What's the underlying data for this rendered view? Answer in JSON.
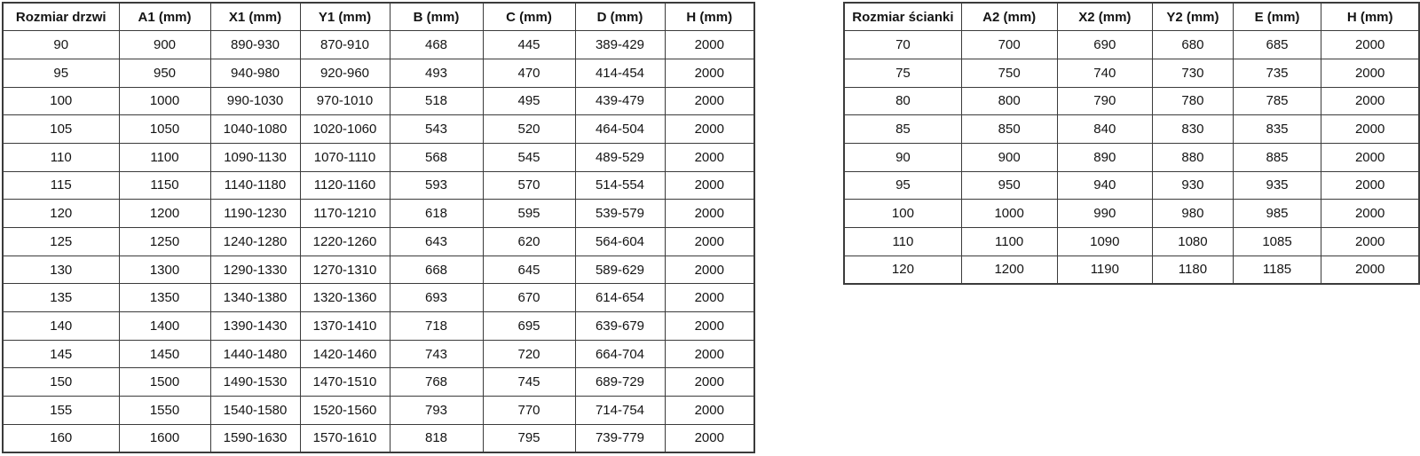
{
  "colors": {
    "border": "#3b3b3b",
    "text": "#141414",
    "background": "#ffffff"
  },
  "tables": [
    {
      "name": "door-size-table",
      "columns": [
        "Rozmiar drzwi",
        "A1 (mm)",
        "X1 (mm)",
        "Y1 (mm)",
        "B (mm)",
        "C (mm)",
        "D (mm)",
        "H (mm)"
      ],
      "rows": [
        [
          "90",
          "900",
          "890-930",
          "870-910",
          "468",
          "445",
          "389-429",
          "2000"
        ],
        [
          "95",
          "950",
          "940-980",
          "920-960",
          "493",
          "470",
          "414-454",
          "2000"
        ],
        [
          "100",
          "1000",
          "990-1030",
          "970-1010",
          "518",
          "495",
          "439-479",
          "2000"
        ],
        [
          "105",
          "1050",
          "1040-1080",
          "1020-1060",
          "543",
          "520",
          "464-504",
          "2000"
        ],
        [
          "110",
          "1100",
          "1090-1130",
          "1070-1110",
          "568",
          "545",
          "489-529",
          "2000"
        ],
        [
          "115",
          "1150",
          "1140-1180",
          "1120-1160",
          "593",
          "570",
          "514-554",
          "2000"
        ],
        [
          "120",
          "1200",
          "1190-1230",
          "1170-1210",
          "618",
          "595",
          "539-579",
          "2000"
        ],
        [
          "125",
          "1250",
          "1240-1280",
          "1220-1260",
          "643",
          "620",
          "564-604",
          "2000"
        ],
        [
          "130",
          "1300",
          "1290-1330",
          "1270-1310",
          "668",
          "645",
          "589-629",
          "2000"
        ],
        [
          "135",
          "1350",
          "1340-1380",
          "1320-1360",
          "693",
          "670",
          "614-654",
          "2000"
        ],
        [
          "140",
          "1400",
          "1390-1430",
          "1370-1410",
          "718",
          "695",
          "639-679",
          "2000"
        ],
        [
          "145",
          "1450",
          "1440-1480",
          "1420-1460",
          "743",
          "720",
          "664-704",
          "2000"
        ],
        [
          "150",
          "1500",
          "1490-1530",
          "1470-1510",
          "768",
          "745",
          "689-729",
          "2000"
        ],
        [
          "155",
          "1550",
          "1540-1580",
          "1520-1560",
          "793",
          "770",
          "714-754",
          "2000"
        ],
        [
          "160",
          "1600",
          "1590-1630",
          "1570-1610",
          "818",
          "795",
          "739-779",
          "2000"
        ]
      ]
    },
    {
      "name": "wall-size-table",
      "columns": [
        "Rozmiar ścianki",
        "A2 (mm)",
        "X2 (mm)",
        "Y2 (mm)",
        "E (mm)",
        "H (mm)"
      ],
      "rows": [
        [
          "70",
          "700",
          "690",
          "680",
          "685",
          "2000"
        ],
        [
          "75",
          "750",
          "740",
          "730",
          "735",
          "2000"
        ],
        [
          "80",
          "800",
          "790",
          "780",
          "785",
          "2000"
        ],
        [
          "85",
          "850",
          "840",
          "830",
          "835",
          "2000"
        ],
        [
          "90",
          "900",
          "890",
          "880",
          "885",
          "2000"
        ],
        [
          "95",
          "950",
          "940",
          "930",
          "935",
          "2000"
        ],
        [
          "100",
          "1000",
          "990",
          "980",
          "985",
          "2000"
        ],
        [
          "110",
          "1100",
          "1090",
          "1080",
          "1085",
          "2000"
        ],
        [
          "120",
          "1200",
          "1190",
          "1180",
          "1185",
          "2000"
        ]
      ]
    }
  ]
}
